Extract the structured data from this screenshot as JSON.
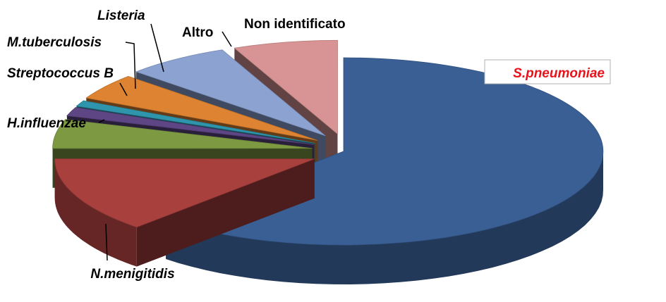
{
  "chart_data": {
    "type": "pie",
    "style": "3d-exploded",
    "title": "",
    "slices": [
      {
        "label": "S.pneumoniae",
        "value": 62,
        "color": "#3a5f95",
        "italic": true,
        "highlight": true,
        "highlight_color": "#e8141c"
      },
      {
        "label": "N.menigitidis",
        "value": 13,
        "color": "#a8403e",
        "italic": true
      },
      {
        "label": "H.influenzae",
        "value": 5,
        "color": "#7d9a43",
        "italic": true
      },
      {
        "label": "Streptococcus B",
        "value": 1.5,
        "color": "#5e4584",
        "italic": true
      },
      {
        "label": "M.tuberculosis",
        "value": 1,
        "color": "#2f95ad",
        "italic": true
      },
      {
        "label": "Listeria",
        "value": 4.5,
        "color": "#dd8331",
        "italic": true
      },
      {
        "label": "Altro",
        "value": 6.5,
        "color": "#8ca3d2",
        "italic": false
      },
      {
        "label": "Non identificato",
        "value": 6.5,
        "color": "#d89494",
        "italic": false
      }
    ],
    "legend": "none",
    "labels": "outside-with-leader-lines"
  }
}
